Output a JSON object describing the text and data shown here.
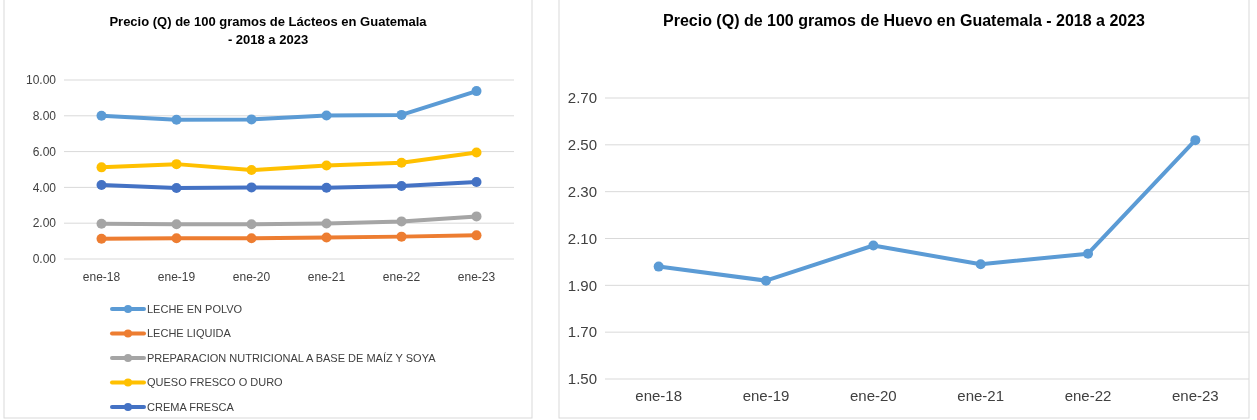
{
  "chart_data": [
    {
      "type": "line",
      "title": "Precio (Q) de 100 gramos de Lácteos en Guatemala - 2018 a 2023",
      "categories": [
        "ene-18",
        "ene-19",
        "ene-20",
        "ene-21",
        "ene-22",
        "ene-23"
      ],
      "series": [
        {
          "name": "LECHE EN POLVO",
          "color": "#5b9bd5",
          "values": [
            8.0,
            7.78,
            7.8,
            8.02,
            8.05,
            9.38
          ]
        },
        {
          "name": "LECHE LIQUIDA",
          "color": "#ed7d31",
          "values": [
            1.13,
            1.16,
            1.16,
            1.2,
            1.25,
            1.32
          ]
        },
        {
          "name": "PREPARACION NUTRICIONAL A BASE DE MAÍZ Y SOYA",
          "color": "#a5a5a5",
          "values": [
            1.97,
            1.94,
            1.94,
            1.98,
            2.1,
            2.38
          ]
        },
        {
          "name": "QUESO FRESCO O DURO",
          "color": "#ffc000",
          "values": [
            5.12,
            5.3,
            4.97,
            5.22,
            5.38,
            5.95
          ]
        },
        {
          "name": "CREMA FRESCA",
          "color": "#4472c4",
          "values": [
            4.13,
            3.97,
            4.0,
            3.98,
            4.08,
            4.3
          ]
        }
      ],
      "ylim": [
        0,
        10
      ],
      "yticks": [
        {
          "value": 0,
          "label": "0.00"
        },
        {
          "value": 2,
          "label": "2.00"
        },
        {
          "value": 4,
          "label": "4.00"
        },
        {
          "value": 6,
          "label": "6.00"
        },
        {
          "value": 8,
          "label": "8.00"
        },
        {
          "value": 10,
          "label": "10.00"
        }
      ],
      "grid": "y",
      "legend": "bottom",
      "marker": "circle"
    },
    {
      "type": "line",
      "title": "Precio (Q) de 100 gramos de Huevo en Guatemala - 2018 a 2023",
      "categories": [
        "ene-18",
        "ene-19",
        "ene-20",
        "ene-21",
        "ene-22",
        "ene-23"
      ],
      "series": [
        {
          "color": "#5b9bd5",
          "values": [
            1.98,
            1.92,
            2.07,
            1.99,
            2.035,
            2.52
          ]
        }
      ],
      "ylim": [
        1.5,
        2.7
      ],
      "yticks": [
        {
          "value": 1.5,
          "label": "1.50"
        },
        {
          "value": 1.7,
          "label": "1.70"
        },
        {
          "value": 1.9,
          "label": "1.90"
        },
        {
          "value": 2.1,
          "label": "2.10"
        },
        {
          "value": 2.3,
          "label": "2.30"
        },
        {
          "value": 2.5,
          "label": "2.50"
        },
        {
          "value": 2.7,
          "label": "2.70"
        }
      ],
      "grid": "y",
      "legend": false,
      "marker": "circle"
    }
  ]
}
